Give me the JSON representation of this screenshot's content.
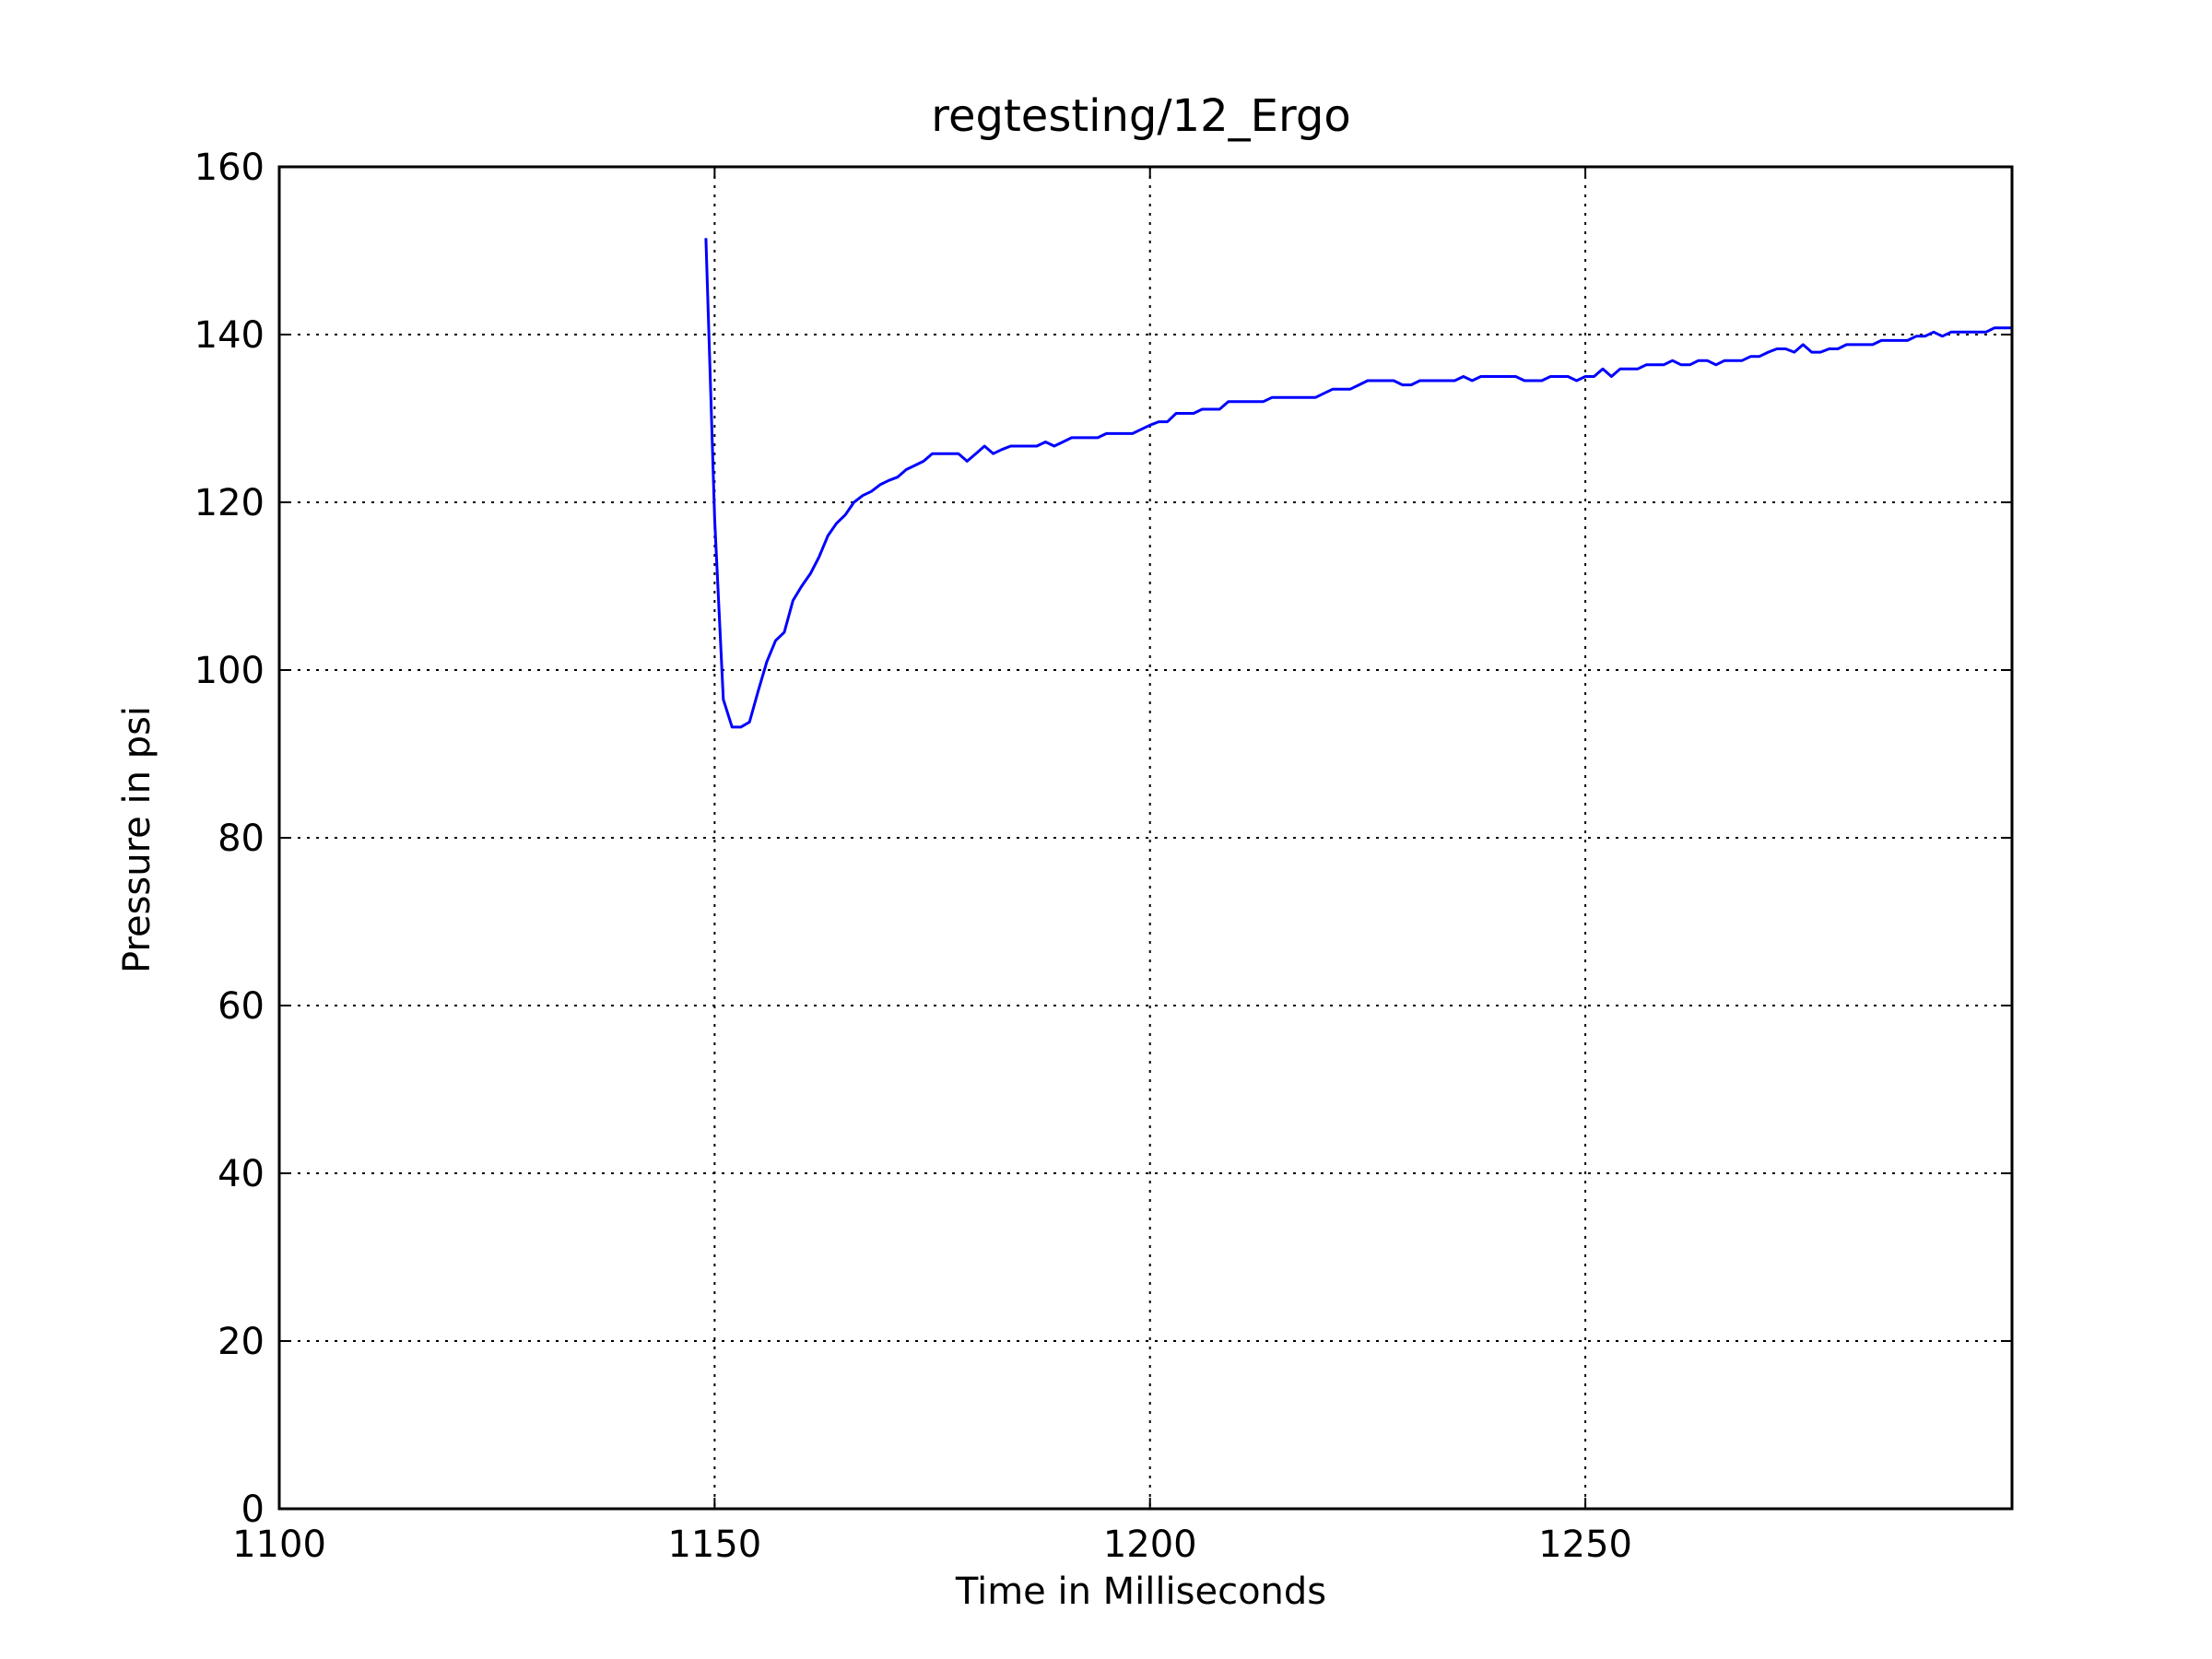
{
  "chart_data": {
    "type": "line",
    "title": "regtesting/12_Ergo",
    "xlabel": "Time in Milliseconds",
    "ylabel": "Pressure in psi",
    "xlim": [
      1100,
      1299
    ],
    "ylim": [
      0,
      160
    ],
    "xticks": [
      "1100",
      "1150",
      "1200",
      "1250"
    ],
    "xtick_values": [
      1100,
      1150,
      1200,
      1250
    ],
    "yticks": [
      "0",
      "20",
      "40",
      "60",
      "80",
      "100",
      "120",
      "140",
      "160"
    ],
    "ytick_values": [
      0,
      20,
      40,
      60,
      80,
      100,
      120,
      140,
      160
    ],
    "grid": true,
    "series": [
      {
        "color": "#0000ff",
        "x": [
          1149,
          1150,
          1151,
          1152,
          1153,
          1154,
          1155,
          1156,
          1157,
          1158,
          1159,
          1160,
          1161,
          1162,
          1163,
          1164,
          1165,
          1166,
          1167,
          1168,
          1169,
          1170,
          1171,
          1172,
          1173,
          1174,
          1175,
          1176,
          1177,
          1178,
          1179,
          1180,
          1181,
          1182,
          1183,
          1184,
          1185,
          1186,
          1187,
          1188,
          1189,
          1190,
          1191,
          1192,
          1193,
          1194,
          1195,
          1196,
          1197,
          1198,
          1199,
          1200,
          1201,
          1202,
          1203,
          1204,
          1205,
          1206,
          1207,
          1208,
          1209,
          1210,
          1211,
          1212,
          1213,
          1214,
          1215,
          1216,
          1217,
          1218,
          1219,
          1220,
          1221,
          1222,
          1223,
          1224,
          1225,
          1226,
          1227,
          1228,
          1229,
          1230,
          1231,
          1232,
          1233,
          1234,
          1235,
          1236,
          1237,
          1238,
          1239,
          1240,
          1241,
          1242,
          1243,
          1244,
          1245,
          1246,
          1247,
          1248,
          1249,
          1250,
          1251,
          1252,
          1253,
          1254,
          1255,
          1256,
          1257,
          1258,
          1259,
          1260,
          1261,
          1262,
          1263,
          1264,
          1265,
          1266,
          1267,
          1268,
          1269,
          1270,
          1271,
          1272,
          1273,
          1274,
          1275,
          1276,
          1277,
          1278,
          1279,
          1280,
          1281,
          1282,
          1283,
          1284,
          1285,
          1286,
          1287,
          1288,
          1289,
          1290,
          1291,
          1292,
          1293,
          1294,
          1295,
          1296,
          1297,
          1298,
          1299
        ],
        "y": [
          151.5,
          118.0,
          96.5,
          93.2,
          93.2,
          93.8,
          97.5,
          101.0,
          103.5,
          104.5,
          108.3,
          110.0,
          111.5,
          113.5,
          116.0,
          117.5,
          118.5,
          120.0,
          120.8,
          121.3,
          122.1,
          122.6,
          123.0,
          123.9,
          124.4,
          124.9,
          125.8,
          125.8,
          125.8,
          125.8,
          124.9,
          125.8,
          126.7,
          125.8,
          126.3,
          126.7,
          126.7,
          126.7,
          126.7,
          127.2,
          126.7,
          127.2,
          127.7,
          127.7,
          127.7,
          127.7,
          128.2,
          128.2,
          128.2,
          128.2,
          128.7,
          129.2,
          129.6,
          129.6,
          130.6,
          130.6,
          130.6,
          131.1,
          131.1,
          131.1,
          132.0,
          132.0,
          132.0,
          132.0,
          132.0,
          132.5,
          132.5,
          132.5,
          132.5,
          132.5,
          132.5,
          133.0,
          133.5,
          133.5,
          133.5,
          134.0,
          134.5,
          134.5,
          134.5,
          134.5,
          134.0,
          134.0,
          134.5,
          134.5,
          134.5,
          134.5,
          134.5,
          135.0,
          134.5,
          135.0,
          135.0,
          135.0,
          135.0,
          135.0,
          134.5,
          134.5,
          134.5,
          135.0,
          135.0,
          135.0,
          134.5,
          135.0,
          135.0,
          135.9,
          135.0,
          135.9,
          135.9,
          135.9,
          136.4,
          136.4,
          136.4,
          136.9,
          136.4,
          136.4,
          136.9,
          136.9,
          136.4,
          136.9,
          136.9,
          136.9,
          137.4,
          137.4,
          137.9,
          138.3,
          138.3,
          137.9,
          138.8,
          137.9,
          137.9,
          138.3,
          138.3,
          138.8,
          138.8,
          138.8,
          138.8,
          139.3,
          139.3,
          139.3,
          139.3,
          139.8,
          139.8,
          140.3,
          139.8,
          140.3,
          140.3,
          140.3,
          140.3,
          140.3,
          140.8,
          140.8,
          140.8
        ]
      }
    ]
  }
}
